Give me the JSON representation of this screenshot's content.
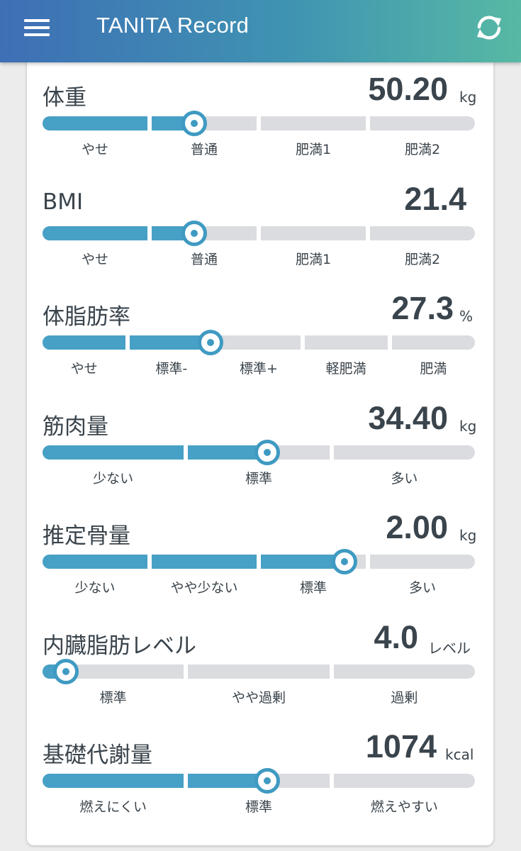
{
  "app": {
    "title": "TANITA Record",
    "menu_icon": "hamburger-menu-icon",
    "sync_icon": "sync-icon"
  },
  "colors": {
    "appbar_start": "#3e6fb5",
    "appbar_end": "#57b9a4",
    "bar_fill": "#47a0c5",
    "bar_empty": "#dadcdf",
    "knob": "#3f9ac2"
  },
  "metrics": [
    {
      "id": "weight",
      "title": "体重",
      "value": "50.20",
      "unit": "kg",
      "segments": [
        "やせ",
        "普通",
        "肥満1",
        "肥満2"
      ],
      "level_fraction": 0.35
    },
    {
      "id": "bmi",
      "title": "BMI",
      "value": "21.4",
      "unit": "",
      "segments": [
        "やせ",
        "普通",
        "肥満1",
        "肥満2"
      ],
      "level_fraction": 0.35
    },
    {
      "id": "body-fat",
      "title": "体脂肪率",
      "value": "27.3",
      "unit": "%",
      "segments": [
        "やせ",
        "標準-",
        "標準+",
        "軽肥満",
        "肥満"
      ],
      "level_fraction": 0.389
    },
    {
      "id": "muscle",
      "title": "筋肉量",
      "value": "34.40",
      "unit": "kg",
      "segments": [
        "少ない",
        "標準",
        "多い"
      ],
      "level_fraction": 0.52
    },
    {
      "id": "bone",
      "title": "推定骨量",
      "value": "2.00",
      "unit": "kg",
      "segments": [
        "少ない",
        "やや少ない",
        "標準",
        "多い"
      ],
      "level_fraction": 0.698
    },
    {
      "id": "visceral-fat",
      "title": "内臓脂肪レベル",
      "value": "4.0",
      "unit": "レベル",
      "segments": [
        "標準",
        "やや過剰",
        "過剰"
      ],
      "level_fraction": 0.054
    },
    {
      "id": "bmr",
      "title": "基礎代謝量",
      "value": "1074",
      "unit": "kcal",
      "segments": [
        "燃えにくい",
        "標準",
        "燃えやすい"
      ],
      "level_fraction": 0.52
    }
  ]
}
